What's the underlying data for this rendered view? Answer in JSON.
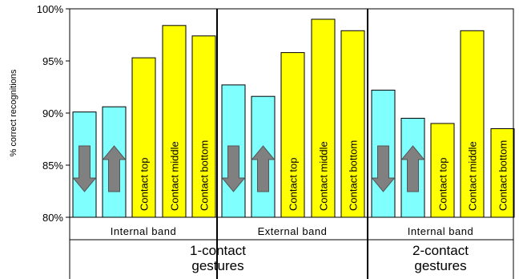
{
  "chart_data": {
    "type": "bar",
    "ylabel": "% correct recognitions",
    "ylim": [
      80,
      100
    ],
    "yticks": [
      "80%",
      "85%",
      "90%",
      "95%",
      "100%"
    ],
    "grid": false,
    "colors": {
      "arrow_gesture": "#80ffff",
      "contact_gesture": "#ffff00",
      "arrow_fill": "#808080"
    },
    "bars": [
      {
        "group": 0,
        "kind": "arrow-down",
        "label": "",
        "value": 90.1
      },
      {
        "group": 0,
        "kind": "arrow-up",
        "label": "",
        "value": 90.6
      },
      {
        "group": 0,
        "kind": "contact",
        "label": "Contact top",
        "value": 95.3
      },
      {
        "group": 0,
        "kind": "contact",
        "label": "Contact middle",
        "value": 98.4
      },
      {
        "group": 0,
        "kind": "contact",
        "label": "Contact bottom",
        "value": 97.4
      },
      {
        "group": 1,
        "kind": "arrow-down",
        "label": "",
        "value": 92.7
      },
      {
        "group": 1,
        "kind": "arrow-up",
        "label": "",
        "value": 91.6
      },
      {
        "group": 1,
        "kind": "contact",
        "label": "Contact top",
        "value": 95.8
      },
      {
        "group": 1,
        "kind": "contact",
        "label": "Contact middle",
        "value": 99.0
      },
      {
        "group": 1,
        "kind": "contact",
        "label": "Contact bottom",
        "value": 97.9
      },
      {
        "group": 2,
        "kind": "arrow-down",
        "label": "",
        "value": 92.2
      },
      {
        "group": 2,
        "kind": "arrow-up",
        "label": "",
        "value": 89.5
      },
      {
        "group": 2,
        "kind": "contact",
        "label": "Contact top",
        "value": 89.0
      },
      {
        "group": 2,
        "kind": "contact",
        "label": "Contact middle",
        "value": 97.9
      },
      {
        "group": 2,
        "kind": "contact",
        "label": "Contact bottom",
        "value": 88.5
      }
    ],
    "band_labels": [
      "Internal band",
      "External band",
      "Internal band"
    ],
    "category_labels": [
      {
        "line1": "1-contact",
        "line2": "gestures"
      },
      {
        "line1": "2-contact",
        "line2": "gestures"
      }
    ]
  }
}
